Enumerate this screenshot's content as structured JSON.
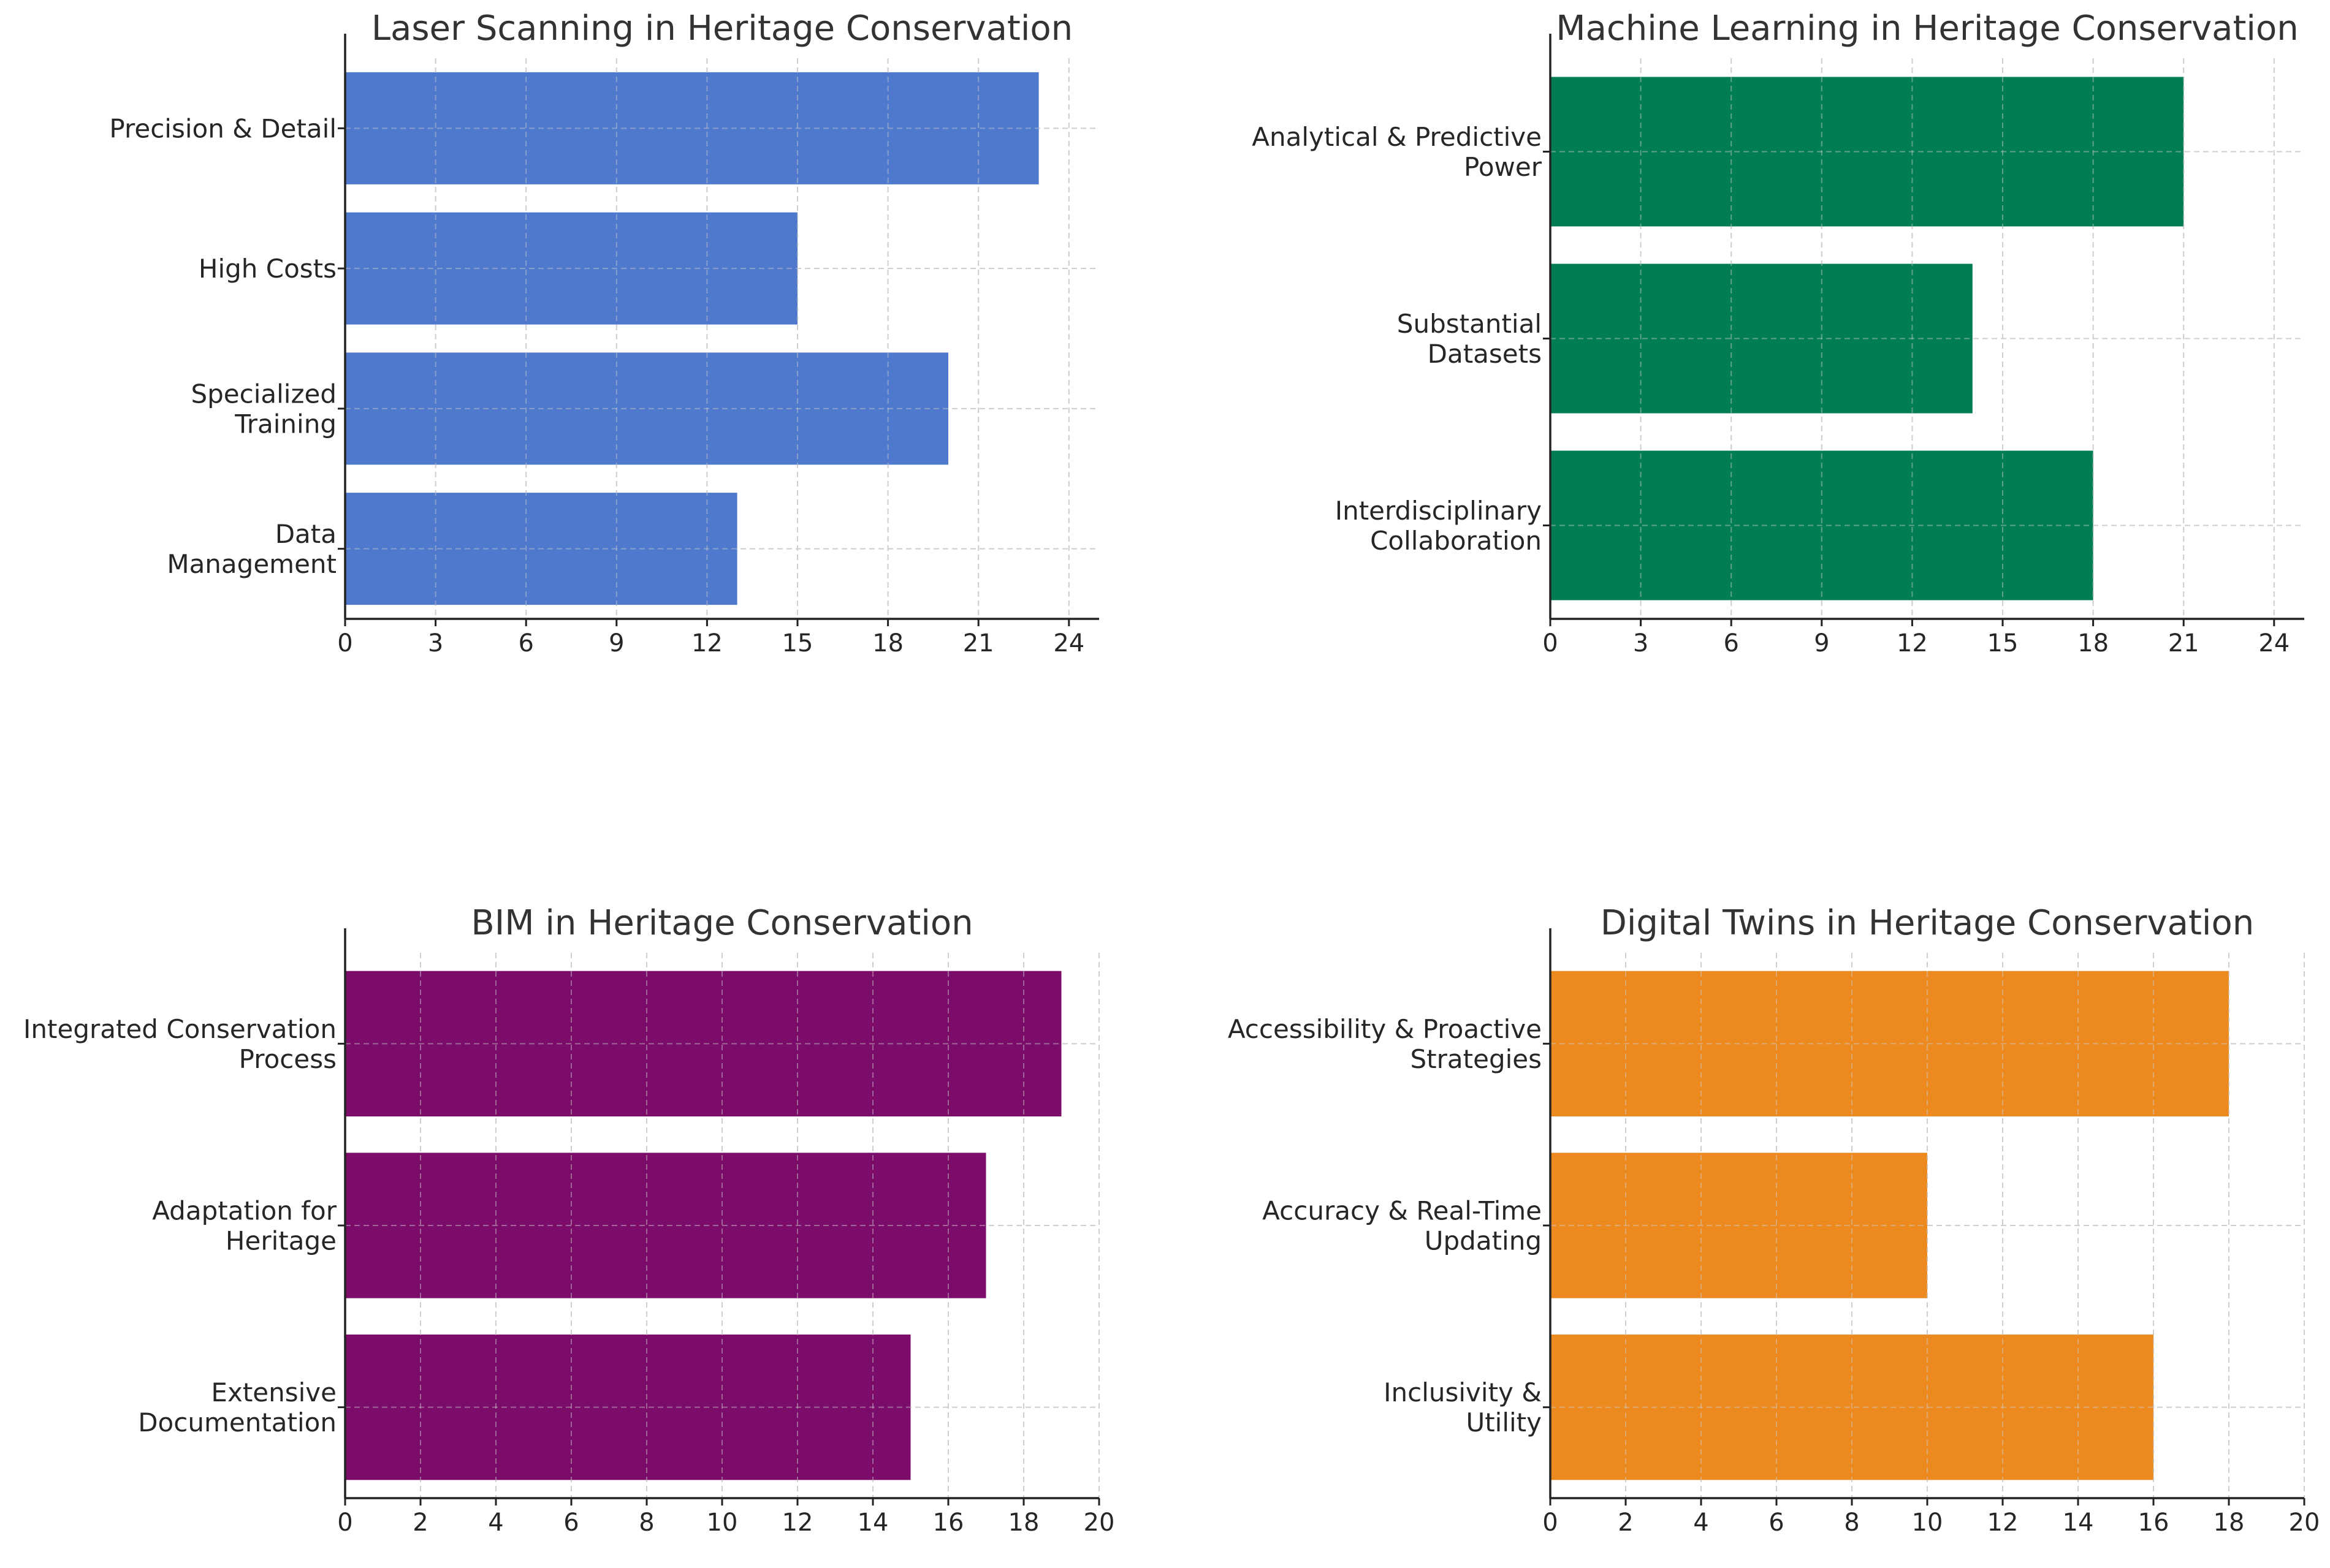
{
  "chart_data": [
    {
      "type": "bar",
      "orientation": "horizontal",
      "title": "Laser Scanning in Heritage Conservation",
      "categories": [
        [
          "Precision & Detail"
        ],
        [
          "High Costs"
        ],
        [
          "Specialized",
          "Training"
        ],
        [
          "Data",
          "Management"
        ]
      ],
      "values": [
        23,
        15,
        20,
        13
      ],
      "xlim": [
        0,
        25
      ],
      "xticks": [
        0,
        3,
        6,
        9,
        12,
        15,
        18,
        21,
        24
      ],
      "color": "#4e79cd",
      "grid": true
    },
    {
      "type": "bar",
      "orientation": "horizontal",
      "title": "Machine Learning in Heritage Conservation",
      "categories": [
        [
          "Analytical & Predictive",
          "Power"
        ],
        [
          "Substantial",
          "Datasets"
        ],
        [
          "Interdisciplinary",
          "Collaboration"
        ]
      ],
      "values": [
        21,
        14,
        18
      ],
      "xlim": [
        0,
        25
      ],
      "xticks": [
        0,
        3,
        6,
        9,
        12,
        15,
        18,
        21,
        24
      ],
      "color": "#017d55",
      "grid": true
    },
    {
      "type": "bar",
      "orientation": "horizontal",
      "title": "BIM in Heritage Conservation",
      "categories": [
        [
          "Integrated Conservation",
          "Process"
        ],
        [
          "Adaptation for",
          "Heritage"
        ],
        [
          "Extensive",
          "Documentation"
        ]
      ],
      "values": [
        19,
        17,
        15
      ],
      "xlim": [
        0,
        20
      ],
      "xticks": [
        0,
        2,
        4,
        6,
        8,
        10,
        12,
        14,
        16,
        18,
        20
      ],
      "color": "#7b0c69",
      "grid": true
    },
    {
      "type": "bar",
      "orientation": "horizontal",
      "title": "Digital Twins in Heritage Conservation",
      "categories": [
        [
          "Accessibility & Proactive",
          "Strategies"
        ],
        [
          "Accuracy & Real-Time",
          "Updating"
        ],
        [
          "Inclusivity &",
          "Utility"
        ]
      ],
      "values": [
        18,
        10,
        16
      ],
      "xlim": [
        0,
        20
      ],
      "xticks": [
        0,
        2,
        4,
        6,
        8,
        10,
        12,
        14,
        16,
        18,
        20
      ],
      "color": "#ec891f",
      "grid": true
    }
  ]
}
